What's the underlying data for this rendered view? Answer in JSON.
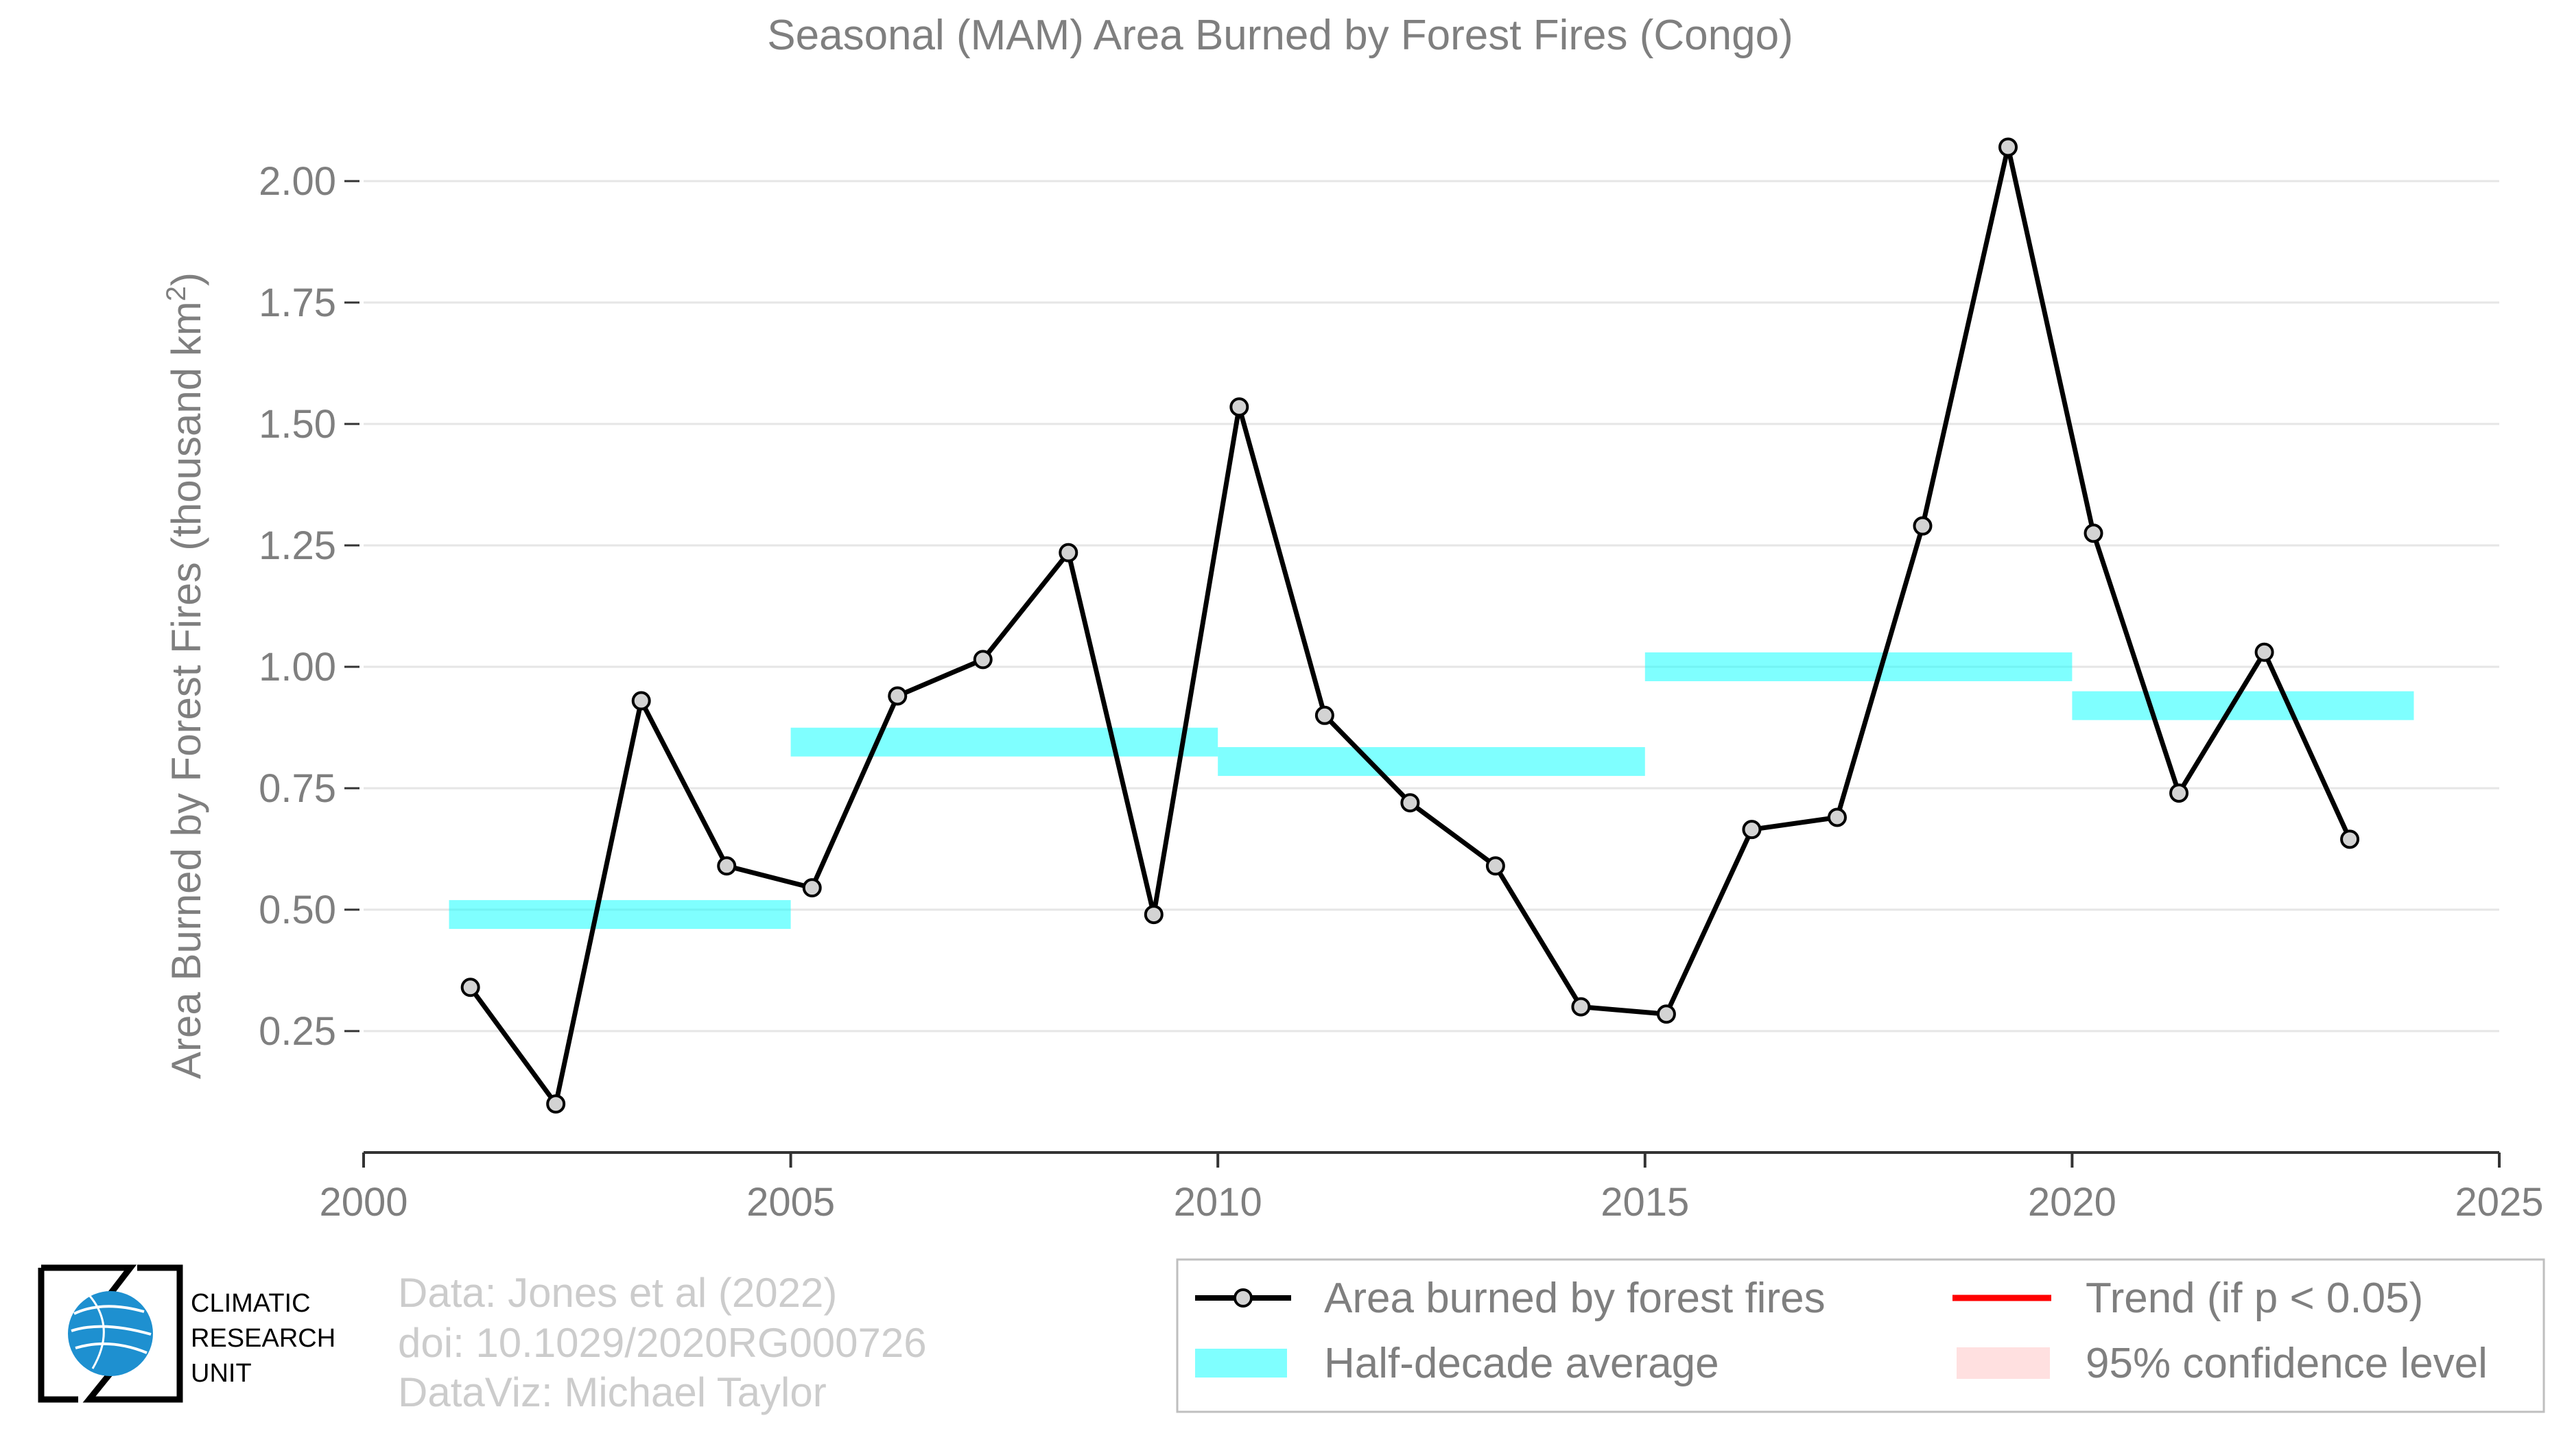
{
  "chart_data": {
    "type": "line",
    "title": "Seasonal (MAM) Area Burned by Forest Fires (Congo)",
    "ylabel_main": "Area Burned by Forest Fires (thousand km",
    "ylabel_sup": "2",
    "ylabel_close": ")",
    "xlim": [
      2000,
      2025
    ],
    "ylim": [
      0.0,
      2.07
    ],
    "xticks": [
      2000,
      2005,
      2010,
      2015,
      2020,
      2025
    ],
    "yticks": [
      0.25,
      0.5,
      0.75,
      1.0,
      1.25,
      1.5,
      1.75,
      2.0
    ],
    "ytick_labels": [
      "0.25",
      "0.50",
      "0.75",
      "1.00",
      "1.25",
      "1.50",
      "1.75",
      "2.00"
    ],
    "series": [
      {
        "name": "Area burned by forest fires",
        "color": "#000000",
        "marker_fill": "#d3d3d3",
        "x": [
          2001.25,
          2002.25,
          2003.25,
          2004.25,
          2005.25,
          2006.25,
          2007.25,
          2008.25,
          2009.25,
          2010.25,
          2011.25,
          2012.25,
          2013.25,
          2014.25,
          2015.25,
          2016.25,
          2017.25,
          2018.25,
          2019.25,
          2020.25,
          2021.25,
          2022.25,
          2023.25
        ],
        "y": [
          0.34,
          0.1,
          0.93,
          0.59,
          0.545,
          0.94,
          1.015,
          1.235,
          0.49,
          1.535,
          0.9,
          0.72,
          0.59,
          0.3,
          0.285,
          0.665,
          0.69,
          1.29,
          2.07,
          1.275,
          0.74,
          1.03,
          0.645
        ]
      }
    ],
    "half_decade_average": {
      "name": "Half-decade average",
      "color": "#00ffff",
      "segments": [
        {
          "x0": 2001,
          "x1": 2005,
          "y": 0.49
        },
        {
          "x0": 2005,
          "x1": 2010,
          "y": 0.845
        },
        {
          "x0": 2010,
          "x1": 2015,
          "y": 0.805
        },
        {
          "x0": 2015,
          "x1": 2020,
          "y": 1.0
        },
        {
          "x0": 2020,
          "x1": 2024,
          "y": 0.92
        }
      ]
    },
    "grid": true,
    "legend_position": "bottom-right"
  },
  "legend": {
    "items": [
      {
        "label": "Area burned by forest fires",
        "color": "#000000"
      },
      {
        "label": "Trend (if p < 0.05)",
        "color": "#ff0000"
      },
      {
        "label": "Half-decade average",
        "color": "#00ffff"
      },
      {
        "label": "95% confidence level",
        "color": "#ff0000"
      }
    ]
  },
  "credits": {
    "line1": "Data: Jones et al (2022)",
    "line2": "doi: 10.1029/2020RG000726",
    "line3": "DataViz: Michael Taylor"
  },
  "logo": {
    "line1": "CLIMATIC",
    "line2": "RESEARCH",
    "line3": "UNIT",
    "color": "#1e90d0"
  }
}
